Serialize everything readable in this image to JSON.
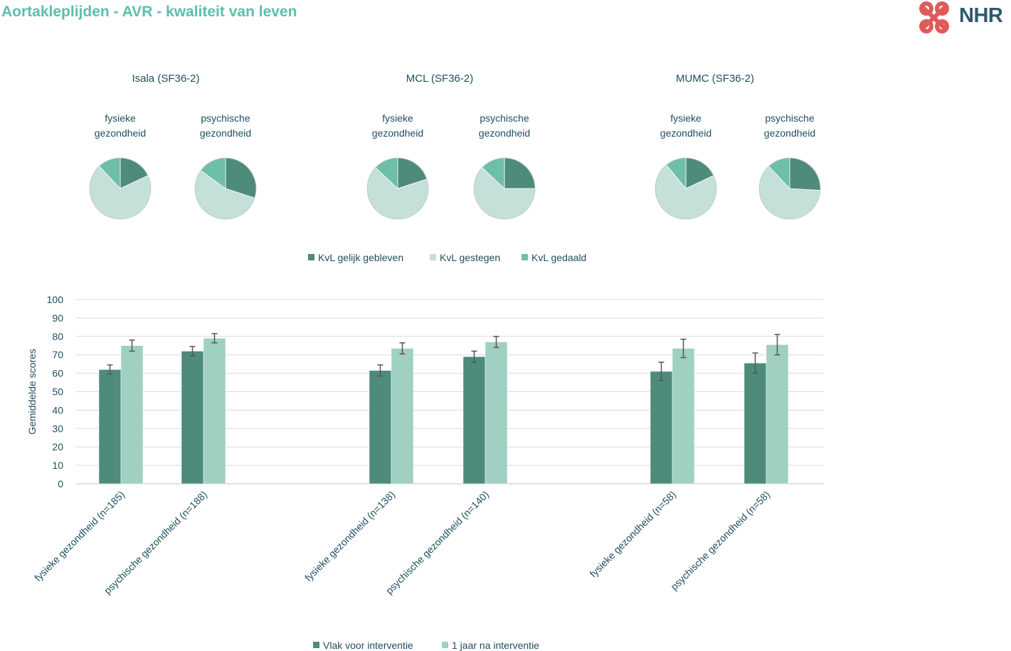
{
  "page": {
    "title": "Aortakleplijden - AVR - kwaliteit van leven",
    "logo_text": "NHR"
  },
  "colors": {
    "title": "#5bbfab",
    "dark_teal": "#4e8b7b",
    "light_teal": "#c4e0d8",
    "mid_teal": "#6dbfa9",
    "bar_after": "#9fd0c2",
    "text": "#1f4e5f",
    "logo_red": "#e05a5a",
    "logo_blue": "#2e5a6e"
  },
  "chart_data": [
    {
      "type": "pie",
      "group": "Isala (SF36-2)",
      "title": "fysieke gezondheid",
      "slices": [
        {
          "name": "KvL gelijk gebleven",
          "value": 18
        },
        {
          "name": "KvL gestegen",
          "value": 70
        },
        {
          "name": "KvL gedaald",
          "value": 12
        }
      ]
    },
    {
      "type": "pie",
      "group": "Isala (SF36-2)",
      "title": "psychische gezondheid",
      "slices": [
        {
          "name": "KvL gelijk gebleven",
          "value": 30
        },
        {
          "name": "KvL gestegen",
          "value": 55
        },
        {
          "name": "KvL gedaald",
          "value": 15
        }
      ]
    },
    {
      "type": "pie",
      "group": "MCL (SF36-2)",
      "title": "fysieke gezondheid",
      "slices": [
        {
          "name": "KvL gelijk gebleven",
          "value": 20
        },
        {
          "name": "KvL gestegen",
          "value": 67
        },
        {
          "name": "KvL gedaald",
          "value": 13
        }
      ]
    },
    {
      "type": "pie",
      "group": "MCL (SF36-2)",
      "title": "psychische gezondheid",
      "slices": [
        {
          "name": "KvL gelijk gebleven",
          "value": 25
        },
        {
          "name": "KvL gestegen",
          "value": 62
        },
        {
          "name": "KvL gedaald",
          "value": 13
        }
      ]
    },
    {
      "type": "pie",
      "group": "MUMC (SF36-2)",
      "title": "fysieke gezondheid",
      "slices": [
        {
          "name": "KvL gelijk gebleven",
          "value": 18
        },
        {
          "name": "KvL gestegen",
          "value": 71
        },
        {
          "name": "KvL gedaald",
          "value": 11
        }
      ]
    },
    {
      "type": "pie",
      "group": "MUMC (SF36-2)",
      "title": "psychische gezondheid",
      "slices": [
        {
          "name": "KvL gelijk gebleven",
          "value": 26
        },
        {
          "name": "KvL gestegen",
          "value": 62
        },
        {
          "name": "KvL gedaald",
          "value": 12
        }
      ]
    },
    {
      "type": "bar",
      "ylabel": "Gemiddelde scores",
      "ylim": [
        0,
        100
      ],
      "yticks": [
        0,
        10,
        20,
        30,
        40,
        50,
        60,
        70,
        80,
        90,
        100
      ],
      "grid": true,
      "legend_position": "bottom",
      "groups": [
        {
          "name": "Isala",
          "categories": [
            "fysieke gezondheid (n=185)",
            "psychische gezondheid (n=188)"
          ]
        },
        {
          "name": "MCL",
          "categories": [
            "fysieke gezondheid (n=138)",
            "psychische gezondheid (n=140)"
          ]
        },
        {
          "name": "MUMC",
          "categories": [
            "fysieke gezondheid (n=58)",
            "psychische gezondheid (n=58)"
          ]
        }
      ],
      "categories": [
        "fysieke gezondheid (n=185)",
        "psychische gezondheid (n=188)",
        "fysieke gezondheid (n=138)",
        "psychische gezondheid (n=140)",
        "fysieke gezondheid (n=58)",
        "psychische gezondheid (n=58)"
      ],
      "series": [
        {
          "name": "Vlak voor interventie",
          "values": [
            62,
            72,
            61.5,
            69,
            61,
            65.5
          ],
          "error": [
            2.5,
            2.5,
            3,
            3,
            5,
            5.5
          ]
        },
        {
          "name": "1 jaar na interventie",
          "values": [
            75,
            79,
            73.5,
            77,
            73.5,
            75.5
          ],
          "error": [
            3,
            2.5,
            3,
            3,
            5,
            5.5
          ]
        }
      ]
    }
  ]
}
